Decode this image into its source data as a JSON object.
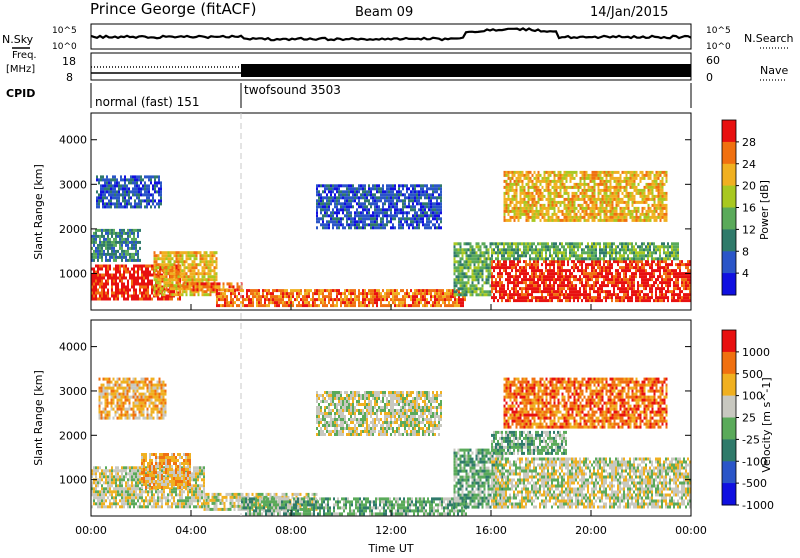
{
  "header": {
    "station": "Prince George (fitACF)",
    "beam": "Beam 09",
    "date": "14/Jan/2015"
  },
  "sidepanel": {
    "nsky_label": "N.Sky",
    "nsky_top": "10^5",
    "nsky_bottom": "10^0",
    "freq_label_1": "Freq.",
    "freq_label_2": "[MHz]",
    "freq_top": "18",
    "freq_bottom": "8",
    "cpid_label": "CPID",
    "nsearch_label": "N.Search",
    "nsearch_top": "10^5",
    "nsearch_bottom": "10^0",
    "nave_label": "Nave",
    "nave_top": "60",
    "nave_bottom": "0"
  },
  "cpid": {
    "segment1": "normal (fast) 151",
    "segment2": "twofsound 3503"
  },
  "x_axis": {
    "title": "Time UT",
    "ticks": [
      "00:00",
      "04:00",
      "08:00",
      "12:00",
      "16:00",
      "20:00",
      "00:00"
    ]
  },
  "chart_data": [
    {
      "type": "heatmap",
      "panel": "power",
      "ylabel": "Slant Range [km]",
      "yticks": [
        "1000",
        "2000",
        "3000",
        "4000"
      ],
      "ylim": [
        180,
        4600
      ],
      "xlim_hours": [
        0,
        24
      ],
      "colorbar_label": "Power [dB]",
      "colorbar_ticks": [
        "4",
        "8",
        "12",
        "16",
        "20",
        "24",
        "28"
      ],
      "colors": [
        "#1010e0",
        "#2a55c8",
        "#2f7a6a",
        "#5aaa5a",
        "#a8c820",
        "#f0b020",
        "#f07010",
        "#e81010"
      ],
      "regions": [
        {
          "t0": 0.0,
          "t1": 3.6,
          "r0": 400,
          "r1": 1200,
          "level": 7
        },
        {
          "t0": 0.0,
          "t1": 2.0,
          "r0": 1300,
          "r1": 2000,
          "level": 2
        },
        {
          "t0": 0.2,
          "t1": 2.8,
          "r0": 2500,
          "r1": 3200,
          "level": 1
        },
        {
          "t0": 2.5,
          "t1": 5.0,
          "r0": 500,
          "r1": 1500,
          "level": 5
        },
        {
          "t0": 3.5,
          "t1": 6.0,
          "r0": 600,
          "r1": 800,
          "level": 6
        },
        {
          "t0": 5.0,
          "t1": 15.0,
          "r0": 250,
          "r1": 650,
          "level": 6
        },
        {
          "t0": 9.0,
          "t1": 14.0,
          "r0": 2000,
          "r1": 3000,
          "level": 1
        },
        {
          "t0": 14.5,
          "t1": 16.0,
          "r0": 500,
          "r1": 1700,
          "level": 3
        },
        {
          "t0": 16.0,
          "t1": 24.0,
          "r0": 400,
          "r1": 1300,
          "level": 7
        },
        {
          "t0": 16.0,
          "t1": 23.5,
          "r0": 1300,
          "r1": 1700,
          "level": 3
        },
        {
          "t0": 16.5,
          "t1": 23.0,
          "r0": 2200,
          "r1": 3300,
          "level": 5
        }
      ]
    },
    {
      "type": "heatmap",
      "panel": "velocity",
      "ylabel": "Slant Range [km]",
      "yticks": [
        "1000",
        "2000",
        "3000",
        "4000"
      ],
      "ylim": [
        180,
        4600
      ],
      "xlim_hours": [
        0,
        24
      ],
      "colorbar_label": "Velocity [m s^-1]",
      "colorbar_ticks": [
        "1000",
        "500",
        "100",
        "25",
        "-25",
        "-100",
        "-500",
        "-1000"
      ],
      "colors": [
        "#1010e0",
        "#2a55c8",
        "#2f7a6a",
        "#5aaa5a",
        "#c8c8c0",
        "#f0b020",
        "#f07010",
        "#e81010"
      ],
      "regions": [
        {
          "t0": 0.0,
          "t1": 4.5,
          "r0": 400,
          "r1": 1300,
          "level": 4
        },
        {
          "t0": 2.0,
          "t1": 4.0,
          "r0": 800,
          "r1": 1600,
          "level": 5
        },
        {
          "t0": 0.3,
          "t1": 3.0,
          "r0": 2400,
          "r1": 3300,
          "level": 5
        },
        {
          "t0": 4.5,
          "t1": 9.0,
          "r0": 300,
          "r1": 700,
          "level": 4
        },
        {
          "t0": 6.0,
          "t1": 15.0,
          "r0": 200,
          "r1": 600,
          "level": 3
        },
        {
          "t0": 9.0,
          "t1": 14.0,
          "r0": 2000,
          "r1": 3000,
          "level": 4
        },
        {
          "t0": 14.5,
          "t1": 16.5,
          "r0": 400,
          "r1": 1700,
          "level": 3
        },
        {
          "t0": 16.0,
          "t1": 24.0,
          "r0": 400,
          "r1": 1500,
          "level": 4
        },
        {
          "t0": 16.5,
          "t1": 23.0,
          "r0": 2200,
          "r1": 3300,
          "level": 6
        },
        {
          "t0": 16.0,
          "t1": 19.0,
          "r0": 1600,
          "r1": 2100,
          "level": 3
        }
      ]
    }
  ]
}
